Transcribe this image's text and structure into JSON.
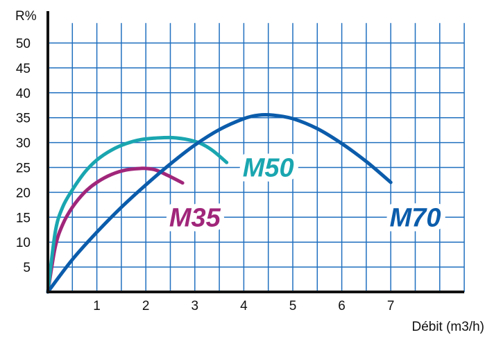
{
  "chart_data": {
    "type": "line",
    "xlabel": "Débit (m3/h)",
    "ylabel": "R%",
    "xlim": [
      0,
      8.5
    ],
    "ylim": [
      0,
      54
    ],
    "grid": true,
    "x_ticks": [
      1,
      2,
      3,
      4,
      5,
      6,
      7
    ],
    "y_ticks": [
      5,
      10,
      15,
      20,
      25,
      30,
      35,
      40,
      45,
      50
    ],
    "series": [
      {
        "name": "M35",
        "color": "#a0267a",
        "label_at": [
          3,
          15
        ],
        "x": [
          0,
          0.15,
          0.3,
          0.5,
          0.75,
          1.0,
          1.3,
          1.6,
          1.9,
          2.0,
          2.2,
          2.45,
          2.75
        ],
        "y": [
          0,
          9,
          13.5,
          17,
          20,
          22,
          23.6,
          24.5,
          24.8,
          24.8,
          24.5,
          23.4,
          21.9
        ]
      },
      {
        "name": "M50",
        "color": "#1aa6b0",
        "label_at": [
          4.5,
          25
        ],
        "x": [
          0,
          0.15,
          0.3,
          0.5,
          0.75,
          1.0,
          1.3,
          1.6,
          1.9,
          2.2,
          2.5,
          2.8,
          3.1,
          3.35,
          3.65
        ],
        "y": [
          0,
          12,
          17,
          20.5,
          24,
          26.5,
          28.5,
          29.8,
          30.6,
          30.9,
          31,
          30.7,
          29.9,
          28.5,
          26
        ]
      },
      {
        "name": "M70",
        "color": "#0b5cab",
        "label_at": [
          7.5,
          15
        ],
        "x": [
          0,
          0.5,
          1,
          1.5,
          2,
          2.5,
          3,
          3.5,
          4,
          4.3,
          4.6,
          5,
          5.5,
          6,
          6.5,
          7
        ],
        "y": [
          0,
          6.5,
          12,
          17,
          21.5,
          25.7,
          29.5,
          32.6,
          34.8,
          35.5,
          35.5,
          34.8,
          32.8,
          29.8,
          26.2,
          22
        ]
      }
    ]
  }
}
